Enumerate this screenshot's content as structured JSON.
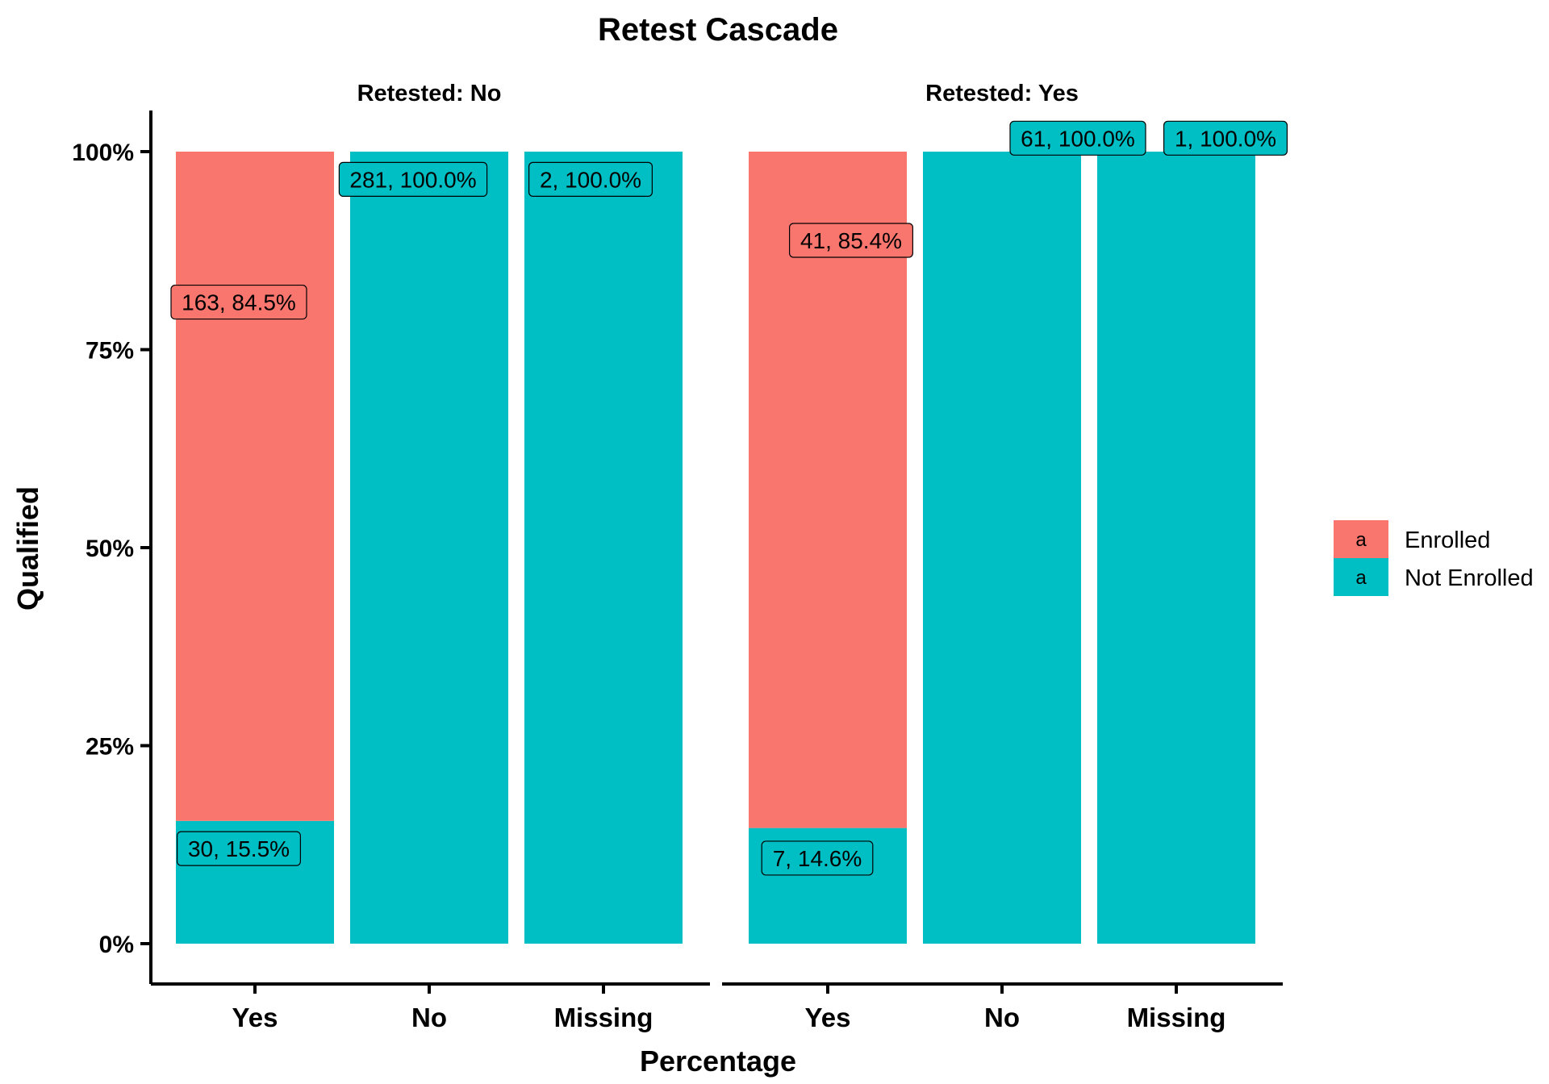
{
  "chart_data": {
    "type": "bar",
    "stacked": true,
    "title": "Retest Cascade",
    "xlabel": "Percentage",
    "ylabel": "Qualified",
    "ylim": [
      0,
      1
    ],
    "yticks": [
      0,
      0.25,
      0.5,
      0.75,
      1.0
    ],
    "ytick_labels": [
      "0%",
      "25%",
      "50%",
      "75%",
      "100%"
    ],
    "categories": [
      "Yes",
      "No",
      "Missing"
    ],
    "grid": false,
    "legend": {
      "position": "right",
      "key_glyph": "a",
      "entries": [
        {
          "name": "Enrolled",
          "color": "#F8766D"
        },
        {
          "name": "Not Enrolled",
          "color": "#00BFC4"
        }
      ]
    },
    "panels": [
      {
        "strip": "Retested: No",
        "series": [
          {
            "name": "Enrolled",
            "values": [
              0.845,
              0,
              0
            ],
            "labels": [
              "163, 84.5%",
              "",
              ""
            ]
          },
          {
            "name": "Not Enrolled",
            "values": [
              0.155,
              1.0,
              1.0
            ],
            "labels": [
              "30, 15.5%",
              "281, 100.0%",
              "2, 100.0%"
            ]
          }
        ]
      },
      {
        "strip": "Retested: Yes",
        "series": [
          {
            "name": "Enrolled",
            "values": [
              0.854,
              0,
              0
            ],
            "labels": [
              "41, 85.4%",
              "",
              ""
            ]
          },
          {
            "name": "Not Enrolled",
            "values": [
              0.146,
              1.0,
              1.0
            ],
            "labels": [
              "7, 14.6%",
              "61, 100.0%",
              "1, 100.0%"
            ]
          }
        ]
      }
    ]
  }
}
